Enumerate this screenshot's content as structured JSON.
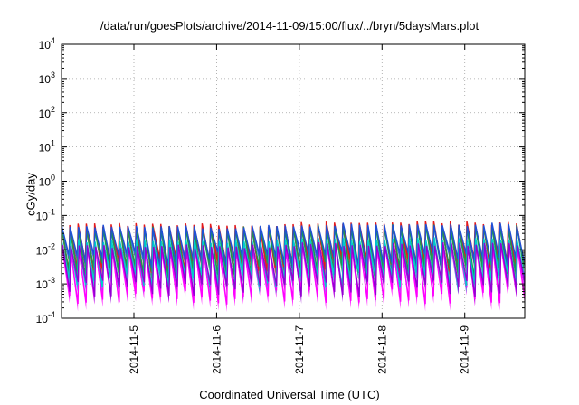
{
  "chart_data": {
    "type": "line",
    "title": "/data/run/goesPlots/archive/2014-11-09/15:00/flux/../bryn/5daysMars.plot",
    "xlabel": "Coordinated Universal Time (UTC)",
    "ylabel": "cGy/day",
    "yscale": "log",
    "ylim": [
      0.0001,
      10000
    ],
    "xlim": [
      "2014-11-04 03:00",
      "2014-11-09 15:00"
    ],
    "y_ticks": [
      {
        "value": 0.0001,
        "base": "10",
        "exp": "-4"
      },
      {
        "value": 0.001,
        "base": "10",
        "exp": "-3"
      },
      {
        "value": 0.01,
        "base": "10",
        "exp": "-2"
      },
      {
        "value": 0.1,
        "base": "10",
        "exp": "-1"
      },
      {
        "value": 1,
        "base": "10",
        "exp": "0"
      },
      {
        "value": 10,
        "base": "10",
        "exp": "1"
      },
      {
        "value": 100,
        "base": "10",
        "exp": "2"
      },
      {
        "value": 1000,
        "base": "10",
        "exp": "3"
      },
      {
        "value": 10000,
        "base": "10",
        "exp": "4"
      }
    ],
    "x_ticks": [
      "2014-11-5",
      "2014-11-6",
      "2014-11-7",
      "2014-11-8",
      "2014-11-9"
    ],
    "x_tick_days": [
      0.875,
      1.875,
      2.875,
      3.875,
      4.875
    ],
    "grid": true,
    "legend": "none",
    "cycle_days": 0.1,
    "cycles": 56,
    "series": [
      {
        "color": "#e31a1c",
        "peak_log": -1.28,
        "trough_log": -2.48,
        "phase": 0.0
      },
      {
        "color": "#1a9850",
        "peak_log": -1.38,
        "trough_log": -2.6,
        "phase": 0.02
      },
      {
        "color": "#1f4fd6",
        "peak_log": -1.33,
        "trough_log": -2.3,
        "phase": 0.04
      },
      {
        "color": "#ff00ff",
        "peak_log": -1.95,
        "trough_log": -3.35,
        "phase": 0.1
      },
      {
        "color": "#00cccc",
        "peak_log": -1.75,
        "trough_log": -2.9,
        "phase": 0.06
      },
      {
        "color": "#9400d3",
        "peak_log": -1.9,
        "trough_log": -3.15,
        "phase": 0.12
      }
    ]
  }
}
